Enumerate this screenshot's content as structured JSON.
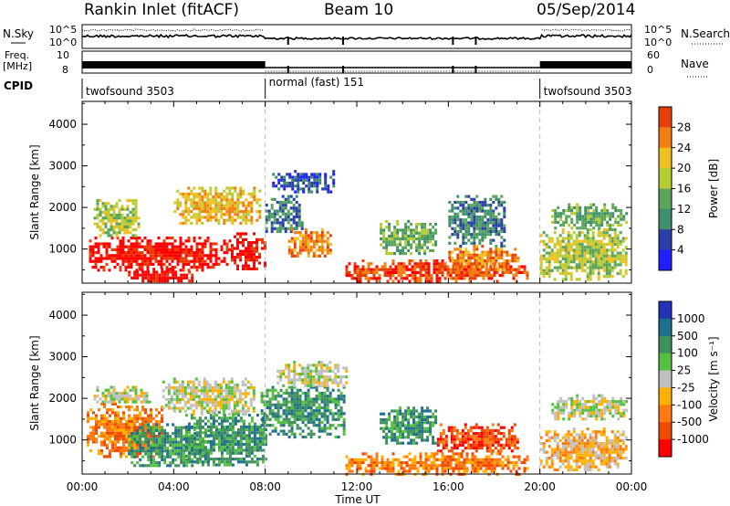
{
  "header": {
    "station": "Rankin Inlet (fitACF)",
    "beam": "Beam 10",
    "date": "05/Sep/2014"
  },
  "top_panels": {
    "nsky_label": "N.Sky",
    "nsearch_label": "N.Search",
    "noise_ticks": [
      "10^5",
      "10^0"
    ],
    "freq_label": "Freq.",
    "freq_unit": "[MHz]",
    "freq_ticks": [
      "10",
      "8"
    ],
    "nave_label": "Nave",
    "nave_ticks": [
      "60",
      "0"
    ],
    "cpid_label": "CPID",
    "cpid_segments": [
      {
        "label": "twofsound 3503",
        "start_hour": 0,
        "end_hour": 8
      },
      {
        "label": "normal (fast) 151",
        "start_hour": 8,
        "end_hour": 20
      },
      {
        "label": "twofsound 3503",
        "start_hour": 20,
        "end_hour": 24
      }
    ]
  },
  "x_axis": {
    "label": "Time UT",
    "ticks": [
      "00:00",
      "04:00",
      "08:00",
      "12:00",
      "16:00",
      "20:00",
      "00:00"
    ],
    "hours": [
      0,
      4,
      8,
      12,
      16,
      20,
      24
    ]
  },
  "colors": {
    "power": [
      "#1f1fff",
      "#2b3fa9",
      "#3f8f6f",
      "#5aa55a",
      "#b5cc35",
      "#f0c020",
      "#f07f10",
      "#e63f08",
      "#ff0000"
    ],
    "velocity": [
      "#2233b8",
      "#1f6f8f",
      "#3f8f5f",
      "#55c040",
      "#c0c0c0",
      "#ffb000",
      "#ff7a10",
      "#f04a00",
      "#ff0000"
    ]
  },
  "chart_data": [
    {
      "type": "heatmap",
      "title": "Power",
      "ylabel": "Slant Range [km]",
      "yticks": [
        1000,
        2000,
        3000,
        4000
      ],
      "ylim": [
        180,
        4550
      ],
      "xlim": [
        0,
        24
      ],
      "colorbar": {
        "label": "Power [dB]",
        "ticks": [
          "4",
          "8",
          "12",
          "16",
          "20",
          "24",
          "28"
        ],
        "range": [
          0,
          32
        ]
      },
      "blobs": [
        {
          "t0": 0.3,
          "t1": 6.5,
          "r0": 500,
          "r1": 1300,
          "level": 8
        },
        {
          "t0": 0.5,
          "t1": 2.5,
          "r0": 1300,
          "r1": 2200,
          "level": 4
        },
        {
          "t0": 4.0,
          "t1": 7.8,
          "r0": 1600,
          "r1": 2500,
          "level": 5
        },
        {
          "t0": 6.5,
          "t1": 8.0,
          "r0": 500,
          "r1": 1400,
          "level": 8
        },
        {
          "t0": 2.0,
          "t1": 4.8,
          "r0": 200,
          "r1": 550,
          "level": 8
        },
        {
          "t0": 8.0,
          "t1": 9.6,
          "r0": 1400,
          "r1": 2300,
          "level": 2
        },
        {
          "t0": 8.3,
          "t1": 11.0,
          "r0": 2400,
          "r1": 2900,
          "level": 1
        },
        {
          "t0": 9.0,
          "t1": 10.8,
          "r0": 800,
          "r1": 1500,
          "level": 6
        },
        {
          "t0": 11.5,
          "t1": 19.5,
          "r0": 250,
          "r1": 750,
          "level": 7
        },
        {
          "t0": 13.0,
          "t1": 15.5,
          "r0": 900,
          "r1": 1700,
          "level": 3
        },
        {
          "t0": 16.0,
          "t1": 19.0,
          "r0": 500,
          "r1": 1100,
          "level": 6
        },
        {
          "t0": 16.0,
          "t1": 18.5,
          "r0": 1100,
          "r1": 2300,
          "level": 2
        },
        {
          "t0": 20.0,
          "t1": 23.8,
          "r0": 300,
          "r1": 1500,
          "level": 4
        },
        {
          "t0": 20.5,
          "t1": 23.8,
          "r0": 1500,
          "r1": 2100,
          "level": 3
        }
      ]
    },
    {
      "type": "heatmap",
      "title": "Velocity",
      "ylabel": "Slant Range [km]",
      "yticks": [
        1000,
        2000,
        3000,
        4000
      ],
      "ylim": [
        180,
        4550
      ],
      "xlim": [
        0,
        24
      ],
      "colorbar": {
        "label": "Velocity [m s⁻¹]",
        "ticks": [
          "1000",
          "500",
          "100",
          "25",
          "-25",
          "-100",
          "-500",
          "-1000"
        ],
        "range": [
          -1000,
          1000
        ]
      },
      "blobs": [
        {
          "t0": 0.2,
          "t1": 3.5,
          "r0": 600,
          "r1": 1900,
          "level": 6
        },
        {
          "t0": 2.0,
          "t1": 5.5,
          "r0": 400,
          "r1": 1400,
          "level": 2
        },
        {
          "t0": 0.5,
          "t1": 3.0,
          "r0": 1900,
          "r1": 2300,
          "level": 4
        },
        {
          "t0": 4.5,
          "t1": 8.0,
          "r0": 400,
          "r1": 1700,
          "level": 2
        },
        {
          "t0": 3.5,
          "t1": 7.5,
          "r0": 1600,
          "r1": 2500,
          "level": 4
        },
        {
          "t0": 7.8,
          "t1": 11.5,
          "r0": 1100,
          "r1": 2300,
          "level": 2
        },
        {
          "t0": 8.5,
          "t1": 11.5,
          "r0": 2300,
          "r1": 2900,
          "level": 4
        },
        {
          "t0": 11.5,
          "t1": 19.5,
          "r0": 200,
          "r1": 700,
          "level": 6
        },
        {
          "t0": 15.5,
          "t1": 19.0,
          "r0": 700,
          "r1": 1400,
          "level": 7
        },
        {
          "t0": 13.0,
          "t1": 15.5,
          "r0": 900,
          "r1": 1800,
          "level": 2
        },
        {
          "t0": 20.0,
          "t1": 23.8,
          "r0": 300,
          "r1": 1300,
          "level": 5
        },
        {
          "t0": 20.5,
          "t1": 23.8,
          "r0": 1500,
          "r1": 2100,
          "level": 4
        }
      ]
    }
  ]
}
